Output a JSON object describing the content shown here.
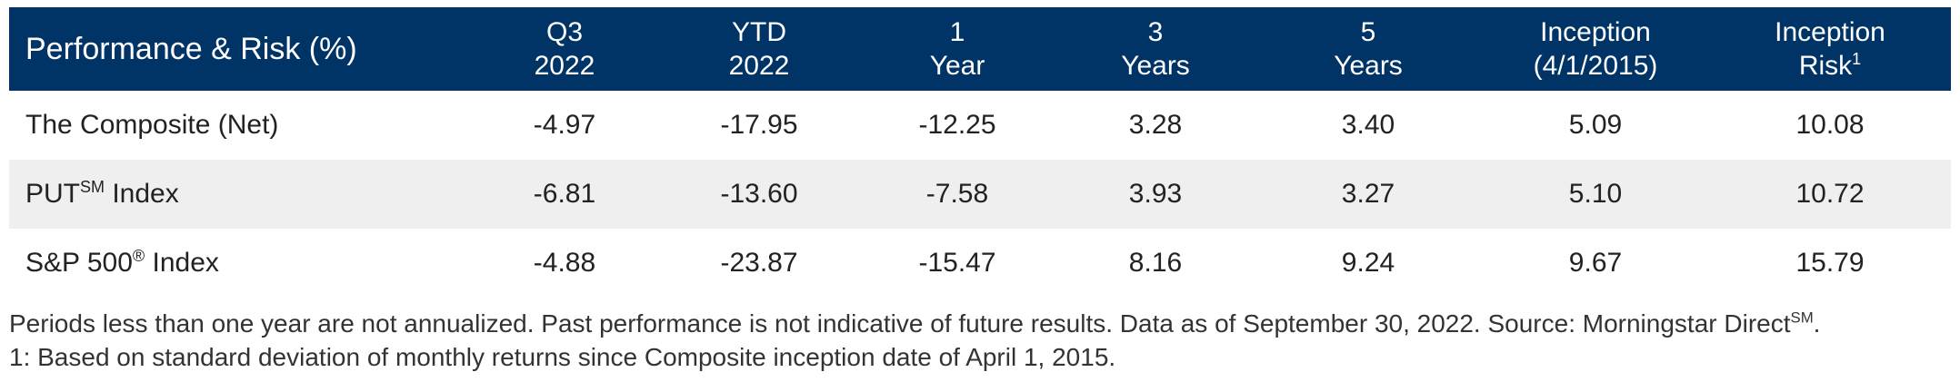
{
  "table": {
    "title": "Performance & Risk (%)",
    "columns": [
      {
        "line1": "Q3",
        "line2": "2022",
        "sup": ""
      },
      {
        "line1": "YTD",
        "line2": "2022",
        "sup": ""
      },
      {
        "line1": "1",
        "line2": "Year",
        "sup": ""
      },
      {
        "line1": "3",
        "line2": "Years",
        "sup": ""
      },
      {
        "line1": "5",
        "line2": "Years",
        "sup": ""
      },
      {
        "line1": "Inception",
        "line2": "(4/1/2015)",
        "sup": ""
      },
      {
        "line1": "Inception",
        "line2": "Risk",
        "sup": "1"
      }
    ],
    "rows": [
      {
        "name": "The Composite (Net)",
        "name_sup": "",
        "name_suffix": "",
        "values": [
          "-4.97",
          "-17.95",
          "-12.25",
          "3.28",
          "3.40",
          "5.09",
          "10.08"
        ]
      },
      {
        "name": "PUT",
        "name_sup": "SM",
        "name_suffix": " Index",
        "values": [
          "-6.81",
          "-13.60",
          "-7.58",
          "3.93",
          "3.27",
          "5.10",
          "10.72"
        ]
      },
      {
        "name": "S&P 500",
        "name_sup": "®",
        "name_suffix": " Index",
        "values": [
          "-4.88",
          "-23.87",
          "-15.47",
          "8.16",
          "9.24",
          "9.67",
          "15.79"
        ]
      }
    ]
  },
  "notes": {
    "line1_text": "Periods less than one year are not annualized. Past performance is not indicative of future results. Data as of September 30, 2022. Source: Morningstar Direct",
    "line1_sup": "SM",
    "line1_end": ".",
    "line2_text": "1: Based on standard deviation of monthly returns since Composite inception date of April 1, 2015."
  },
  "colors": {
    "header_bg": "#003366",
    "header_text": "#ffffff",
    "row_shade": "#efefef"
  }
}
